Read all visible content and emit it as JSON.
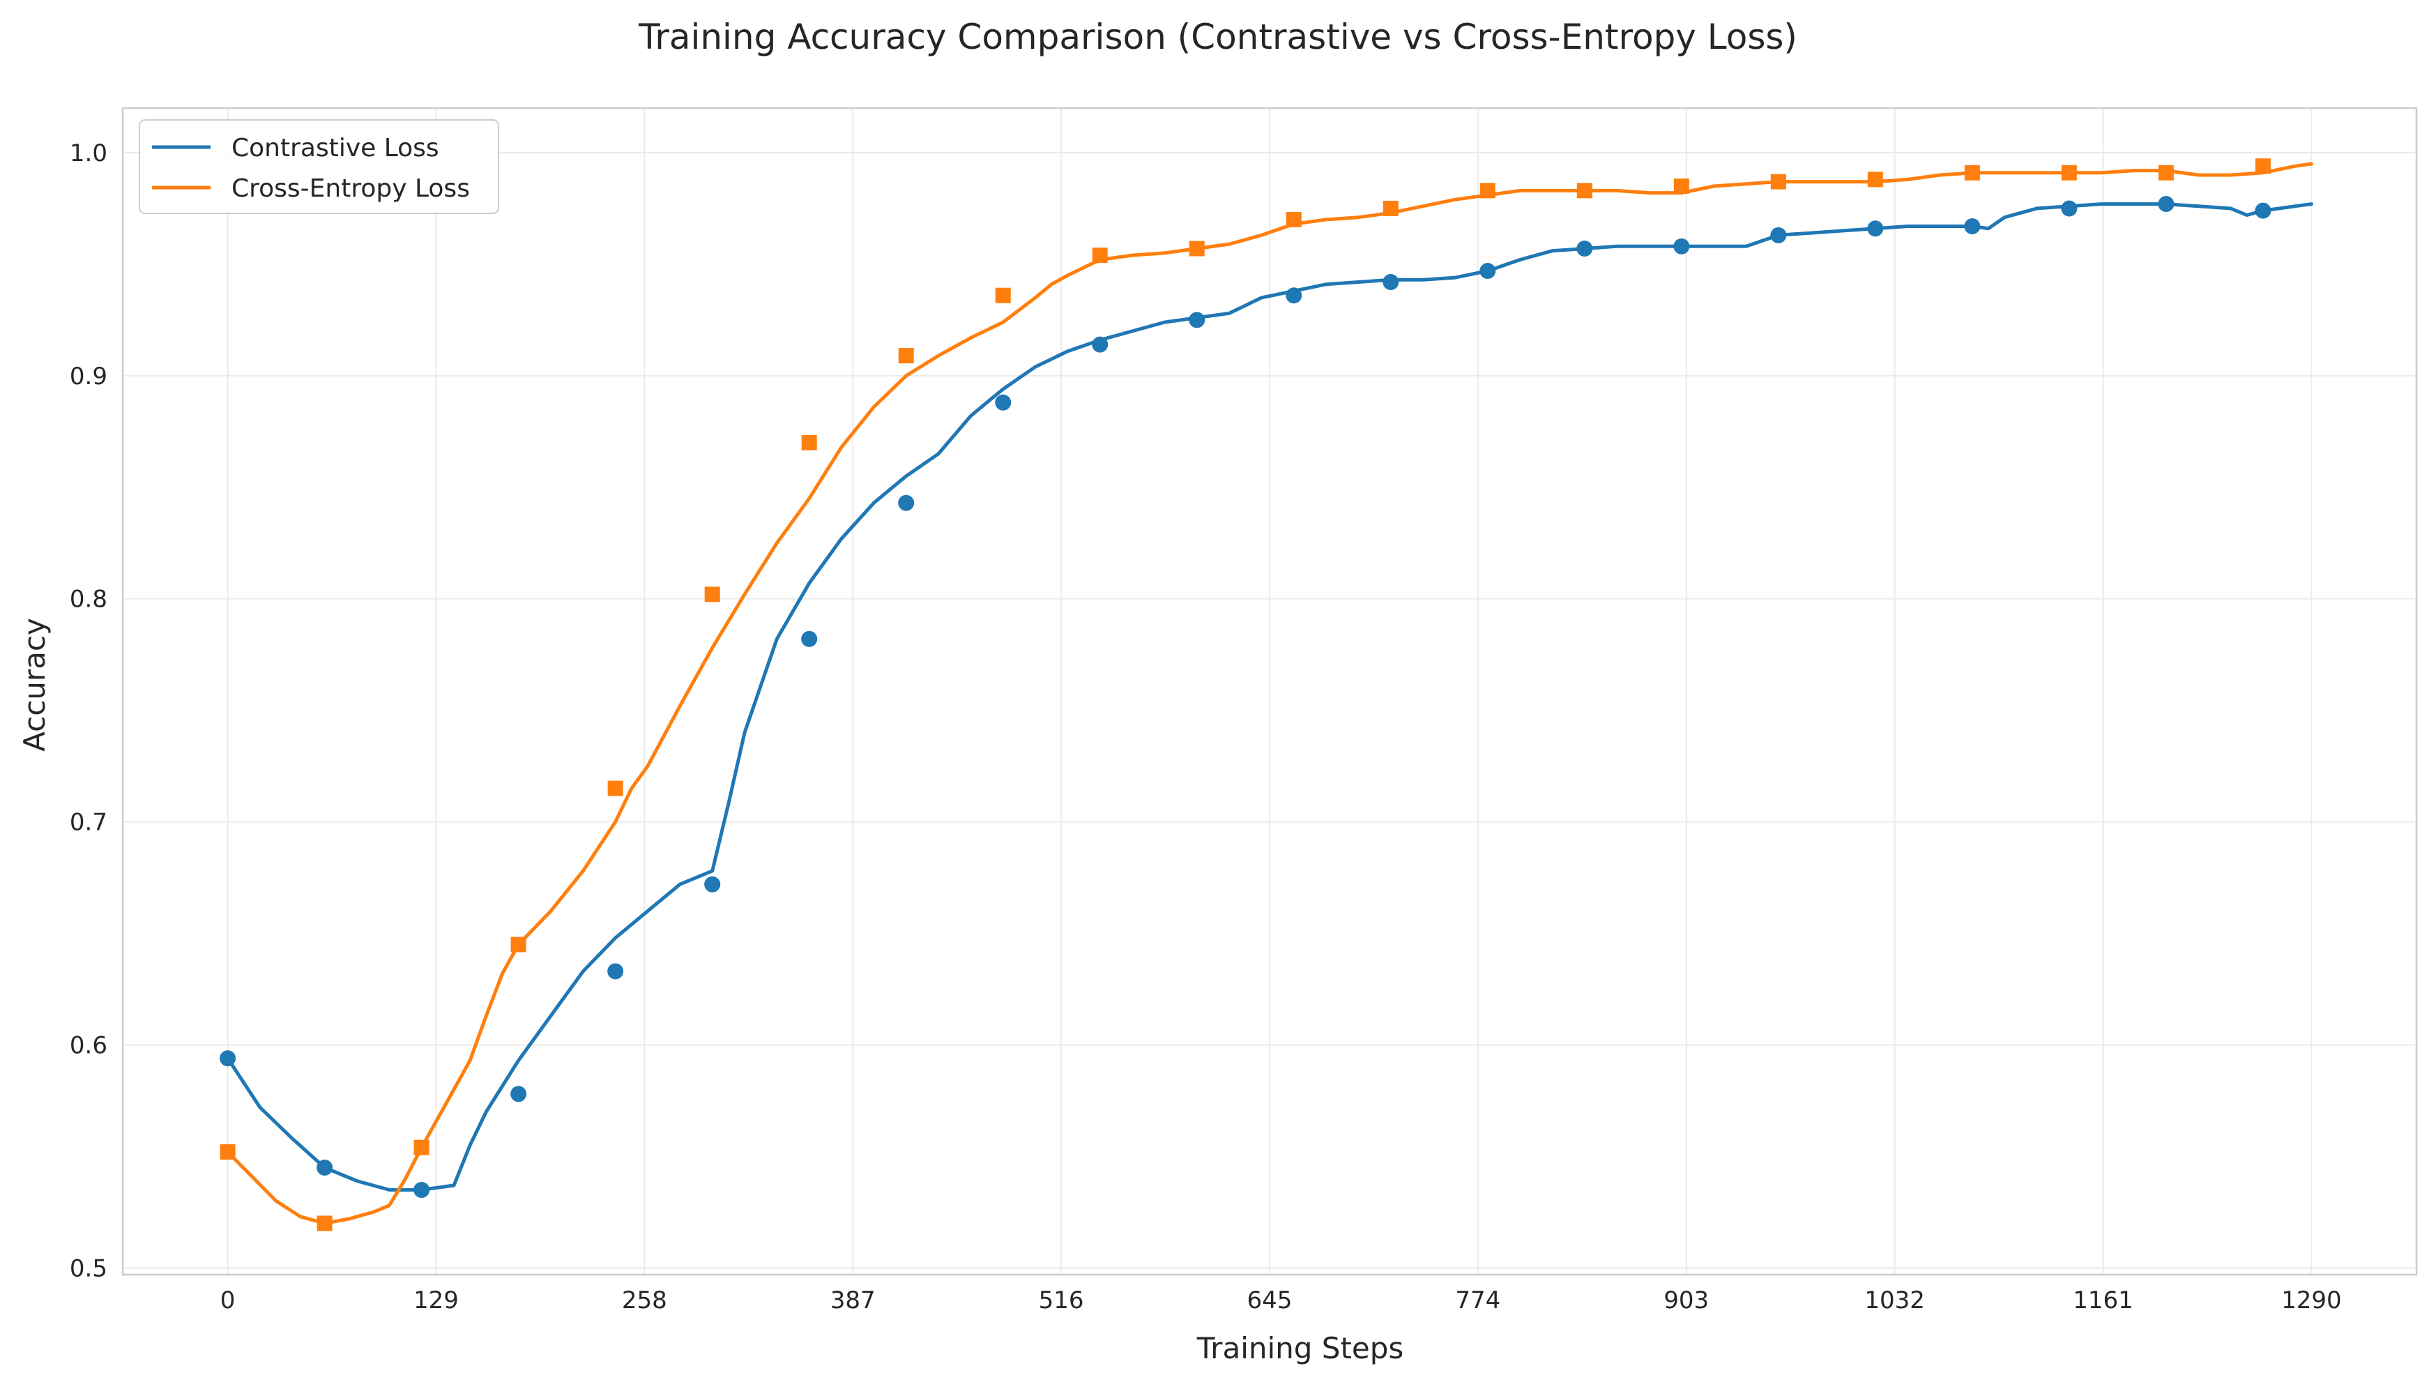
{
  "chart_data": {
    "type": "line",
    "title": "Training Accuracy Comparison (Contrastive vs Cross-Entropy Loss)",
    "xlabel": "Training Steps",
    "ylabel": "Accuracy",
    "xlim": [
      -65,
      1355
    ],
    "ylim": [
      0.497,
      1.02
    ],
    "xticks": [
      0,
      129,
      258,
      387,
      516,
      645,
      774,
      903,
      1032,
      1161,
      1290
    ],
    "yticks": [
      0.5,
      0.6,
      0.7,
      0.8,
      0.9,
      1.0
    ],
    "ytick_labels": [
      "0.5",
      "0.6",
      "0.7",
      "0.8",
      "0.9",
      "1.0"
    ],
    "grid": true,
    "legend_position": "upper-left",
    "series": [
      {
        "name": "Contrastive Loss",
        "color": "#1f77b4",
        "marker": "circle",
        "line_x": [
          0,
          20,
          40,
          60,
          80,
          100,
          120,
          140,
          150,
          160,
          180,
          200,
          220,
          240,
          260,
          280,
          300,
          310,
          320,
          340,
          360,
          380,
          400,
          420,
          440,
          460,
          470,
          480,
          500,
          520,
          540,
          560,
          580,
          600,
          620,
          640,
          660,
          680,
          700,
          720,
          740,
          760,
          780,
          800,
          820,
          840,
          860,
          880,
          900,
          920,
          940,
          960,
          980,
          1000,
          1020,
          1040,
          1060,
          1080,
          1090,
          1100,
          1120,
          1140,
          1160,
          1180,
          1200,
          1220,
          1240,
          1250,
          1260,
          1280,
          1290
        ],
        "line_y": [
          0.594,
          0.572,
          0.558,
          0.545,
          0.539,
          0.535,
          0.535,
          0.537,
          0.555,
          0.57,
          0.593,
          0.613,
          0.633,
          0.648,
          0.66,
          0.672,
          0.678,
          0.708,
          0.74,
          0.782,
          0.807,
          0.827,
          0.843,
          0.855,
          0.865,
          0.882,
          0.888,
          0.894,
          0.904,
          0.911,
          0.916,
          0.92,
          0.924,
          0.926,
          0.928,
          0.935,
          0.938,
          0.941,
          0.942,
          0.943,
          0.943,
          0.944,
          0.947,
          0.952,
          0.956,
          0.957,
          0.958,
          0.958,
          0.958,
          0.958,
          0.958,
          0.963,
          0.964,
          0.965,
          0.966,
          0.967,
          0.967,
          0.967,
          0.966,
          0.971,
          0.975,
          0.976,
          0.977,
          0.977,
          0.977,
          0.976,
          0.975,
          0.972,
          0.974,
          0.976,
          0.977
        ],
        "marker_x": [
          0,
          60,
          120,
          180,
          240,
          300,
          360,
          420,
          480,
          540,
          600,
          660,
          720,
          780,
          840,
          900,
          960,
          1020,
          1080,
          1140,
          1200,
          1260
        ],
        "marker_y": [
          0.594,
          0.545,
          0.535,
          0.578,
          0.633,
          0.672,
          0.782,
          0.843,
          0.888,
          0.914,
          0.925,
          0.936,
          0.942,
          0.947,
          0.957,
          0.958,
          0.963,
          0.966,
          0.967,
          0.975,
          0.977,
          0.974
        ]
      },
      {
        "name": "Cross-Entropy Loss",
        "color": "#ff7f0e",
        "marker": "square",
        "line_x": [
          0,
          15,
          30,
          45,
          60,
          75,
          90,
          100,
          110,
          120,
          140,
          150,
          160,
          170,
          180,
          200,
          220,
          240,
          250,
          260,
          280,
          300,
          320,
          340,
          360,
          380,
          400,
          420,
          440,
          460,
          480,
          500,
          510,
          520,
          540,
          560,
          580,
          600,
          620,
          640,
          660,
          680,
          700,
          720,
          740,
          760,
          780,
          800,
          820,
          840,
          860,
          880,
          900,
          920,
          940,
          960,
          980,
          1000,
          1020,
          1040,
          1060,
          1080,
          1100,
          1120,
          1140,
          1160,
          1180,
          1200,
          1220,
          1240,
          1260,
          1280,
          1290
        ],
        "line_y": [
          0.552,
          0.541,
          0.53,
          0.523,
          0.52,
          0.522,
          0.525,
          0.528,
          0.54,
          0.554,
          0.58,
          0.593,
          0.613,
          0.632,
          0.645,
          0.66,
          0.678,
          0.7,
          0.715,
          0.725,
          0.752,
          0.778,
          0.802,
          0.825,
          0.845,
          0.868,
          0.886,
          0.9,
          0.909,
          0.917,
          0.924,
          0.935,
          0.941,
          0.945,
          0.952,
          0.954,
          0.955,
          0.957,
          0.959,
          0.963,
          0.968,
          0.97,
          0.971,
          0.973,
          0.976,
          0.979,
          0.981,
          0.983,
          0.983,
          0.983,
          0.983,
          0.982,
          0.982,
          0.985,
          0.986,
          0.987,
          0.987,
          0.987,
          0.987,
          0.988,
          0.99,
          0.991,
          0.991,
          0.991,
          0.991,
          0.991,
          0.992,
          0.992,
          0.99,
          0.99,
          0.991,
          0.994,
          0.995
        ],
        "marker_x": [
          0,
          60,
          120,
          180,
          240,
          300,
          360,
          420,
          480,
          540,
          600,
          660,
          720,
          780,
          840,
          900,
          960,
          1020,
          1080,
          1140,
          1200,
          1260
        ],
        "marker_y": [
          0.552,
          0.52,
          0.554,
          0.645,
          0.715,
          0.802,
          0.87,
          0.909,
          0.936,
          0.954,
          0.957,
          0.97,
          0.975,
          0.983,
          0.983,
          0.985,
          0.987,
          0.988,
          0.991,
          0.991,
          0.991,
          0.994
        ]
      }
    ]
  }
}
